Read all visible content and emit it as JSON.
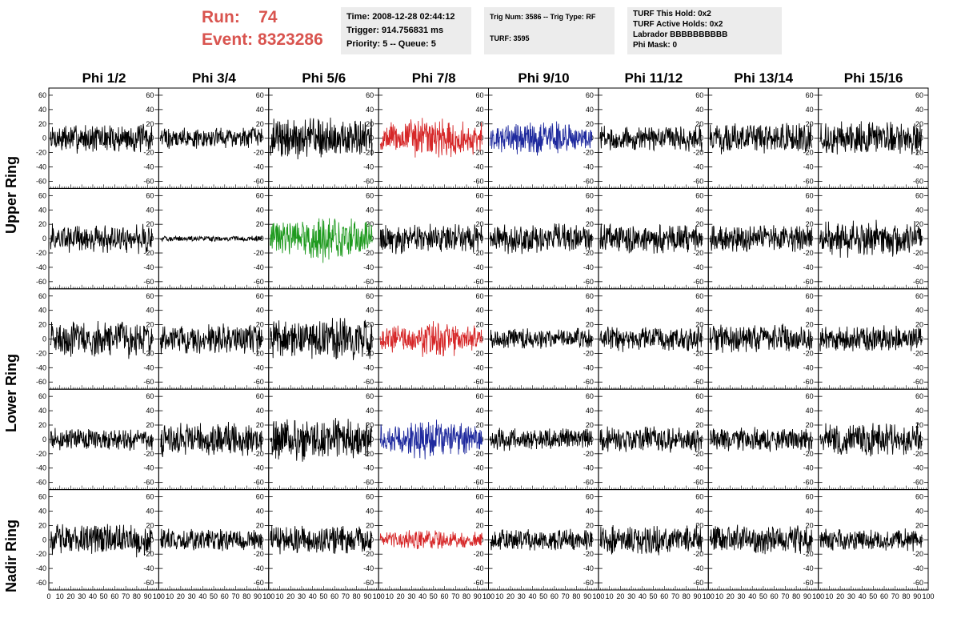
{
  "run": {
    "run_label": "Run:    74",
    "event_label": "Event: 8323286"
  },
  "info1": {
    "time": "Time: 2008-12-28 02:44:12",
    "trigger": "Trigger: 914.756831 ms",
    "priority": "Priority: 5 -- Queue: 5"
  },
  "info2": {
    "trig": "Trig Num: 3586 -- Trig Type: RF",
    "turf": "TURF: 3595"
  },
  "info3": {
    "hold": "TURF This Hold: 0x2",
    "active": "TURF Active Holds: 0x2",
    "labrador": "Labrador BBBBBBBBBB",
    "phimask": "Phi Mask: 0"
  },
  "columns": [
    "Phi 1/2",
    "Phi 3/4",
    "Phi 5/6",
    "Phi 7/8",
    "Phi 9/10",
    "Phi 11/12",
    "Phi 13/14",
    "Phi 15/16"
  ],
  "rows": [
    "Upper Ring",
    "Lower Ring",
    "Nadir Ring"
  ],
  "colors": {
    "black": "#000000",
    "red": "#d62728",
    "blue": "#1f2a9e",
    "green": "#1e9a1e",
    "runText": "#d9544f"
  },
  "chart_data": {
    "type": "line",
    "panel_grid": {
      "rows": 5,
      "cols": 8
    },
    "xlim": [
      0,
      100
    ],
    "ylim": [
      -70,
      70
    ],
    "y_ticks": [
      -60,
      -40,
      -20,
      0,
      20,
      40,
      60
    ],
    "x_tick_labels": [
      "0",
      "10",
      "20",
      "30",
      "40",
      "50",
      "60",
      "70",
      "80",
      "90",
      "100"
    ],
    "panels": [
      [
        {
          "color": "black",
          "amp": 16
        },
        {
          "color": "black",
          "amp": 12
        },
        {
          "color": "black",
          "amp": 22
        },
        {
          "color": "red",
          "amp": 24
        },
        {
          "color": "blue",
          "amp": 20
        },
        {
          "color": "black",
          "amp": 14
        },
        {
          "color": "black",
          "amp": 16
        },
        {
          "color": "black",
          "amp": 18
        }
      ],
      [
        {
          "color": "black",
          "amp": 16
        },
        {
          "color": "black",
          "amp": 3
        },
        {
          "color": "green",
          "amp": 26
        },
        {
          "color": "black",
          "amp": 16
        },
        {
          "color": "black",
          "amp": 16
        },
        {
          "color": "black",
          "amp": 16
        },
        {
          "color": "black",
          "amp": 15
        },
        {
          "color": "black",
          "amp": 20
        }
      ],
      [
        {
          "color": "black",
          "amp": 20
        },
        {
          "color": "black",
          "amp": 16
        },
        {
          "color": "black",
          "amp": 22
        },
        {
          "color": "red",
          "amp": 20
        },
        {
          "color": "black",
          "amp": 12
        },
        {
          "color": "black",
          "amp": 14
        },
        {
          "color": "black",
          "amp": 16
        },
        {
          "color": "black",
          "amp": 14
        }
      ],
      [
        {
          "color": "black",
          "amp": 12
        },
        {
          "color": "black",
          "amp": 18
        },
        {
          "color": "black",
          "amp": 24
        },
        {
          "color": "blue",
          "amp": 22
        },
        {
          "color": "black",
          "amp": 12
        },
        {
          "color": "black",
          "amp": 14
        },
        {
          "color": "black",
          "amp": 14
        },
        {
          "color": "black",
          "amp": 18
        }
      ],
      [
        {
          "color": "black",
          "amp": 18
        },
        {
          "color": "black",
          "amp": 12
        },
        {
          "color": "black",
          "amp": 16
        },
        {
          "color": "red",
          "amp": 12
        },
        {
          "color": "black",
          "amp": 12
        },
        {
          "color": "black",
          "amp": 16
        },
        {
          "color": "black",
          "amp": 16
        },
        {
          "color": "black",
          "amp": 12
        }
      ]
    ]
  }
}
